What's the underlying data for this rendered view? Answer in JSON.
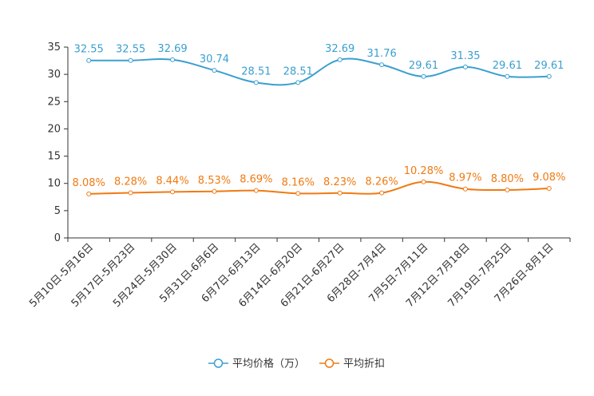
{
  "chart_data": {
    "type": "line",
    "title": "",
    "xlabel": "",
    "ylabel": "",
    "ylim": [
      0,
      35
    ],
    "yticks": [
      0,
      5,
      10,
      15,
      20,
      25,
      30,
      35
    ],
    "categories": [
      "5月10日-5月16日",
      "5月17日-5月23日",
      "5月24日-5月30日",
      "5月31日-6月6日",
      "6月7日-6月13日",
      "6月14日-6月20日",
      "6月21日-6月27日",
      "6月28日-7月4日",
      "7月5日-7月11日",
      "7月12日-7月18日",
      "7月19日-7月25日",
      "7月26日-8月1日"
    ],
    "series": [
      {
        "name": "平均价格（万）",
        "color": "#3a9fd0",
        "values": [
          32.55,
          32.55,
          32.69,
          30.74,
          28.51,
          28.51,
          32.69,
          31.76,
          29.61,
          31.35,
          29.61,
          29.61
        ],
        "labels": [
          "32.55",
          "32.55",
          "32.69",
          "30.74",
          "28.51",
          "28.51",
          "32.69",
          "31.76",
          "29.61",
          "31.35",
          "29.61",
          "29.61"
        ]
      },
      {
        "name": "平均折扣",
        "color": "#f07a12",
        "values": [
          8.08,
          8.28,
          8.44,
          8.53,
          8.69,
          8.16,
          8.23,
          8.26,
          10.28,
          8.97,
          8.8,
          9.08
        ],
        "labels": [
          "8.08%",
          "8.28%",
          "8.44%",
          "8.53%",
          "8.69%",
          "8.16%",
          "8.23%",
          "8.26%",
          "10.28%",
          "8.97%",
          "8.80%",
          "9.08%"
        ]
      }
    ],
    "legend_position": "bottom-center",
    "grid": false
  }
}
